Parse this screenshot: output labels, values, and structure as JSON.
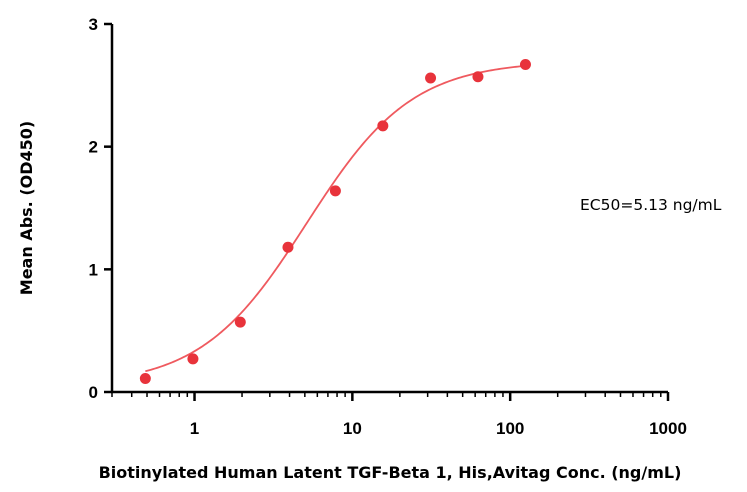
{
  "chart_data": {
    "type": "scatter",
    "title": "",
    "xlabel": "Biotinylated Human Latent TGF-Beta 1, His,Avitag Conc. (ng/mL)",
    "ylabel": "Mean Abs. (OD450)",
    "x_scale": "log",
    "xlim": [
      0.3,
      1000
    ],
    "ylim": [
      0,
      3
    ],
    "x_ticks": [
      1,
      10,
      100,
      1000
    ],
    "x_tick_labels": [
      "1",
      "10",
      "100",
      "1000"
    ],
    "y_ticks": [
      0,
      1,
      2,
      3
    ],
    "y_tick_labels": [
      "0",
      "1",
      "2",
      "3"
    ],
    "grid": false,
    "point_color": "#e8333b",
    "curve_color": "#ef5a5f",
    "annotation": "EC50=5.13 ng/mL",
    "series": [
      {
        "x": [
          0.488,
          0.977,
          1.95,
          3.91,
          7.81,
          15.6,
          31.3,
          62.5,
          125
        ],
        "y": [
          0.11,
          0.27,
          0.57,
          1.18,
          1.64,
          2.17,
          2.56,
          2.57,
          2.67
        ]
      }
    ],
    "fit": {
      "model": "4PL",
      "bottom": 0.05,
      "top": 2.7,
      "ec50": 5.13,
      "hill": 1.3
    }
  }
}
